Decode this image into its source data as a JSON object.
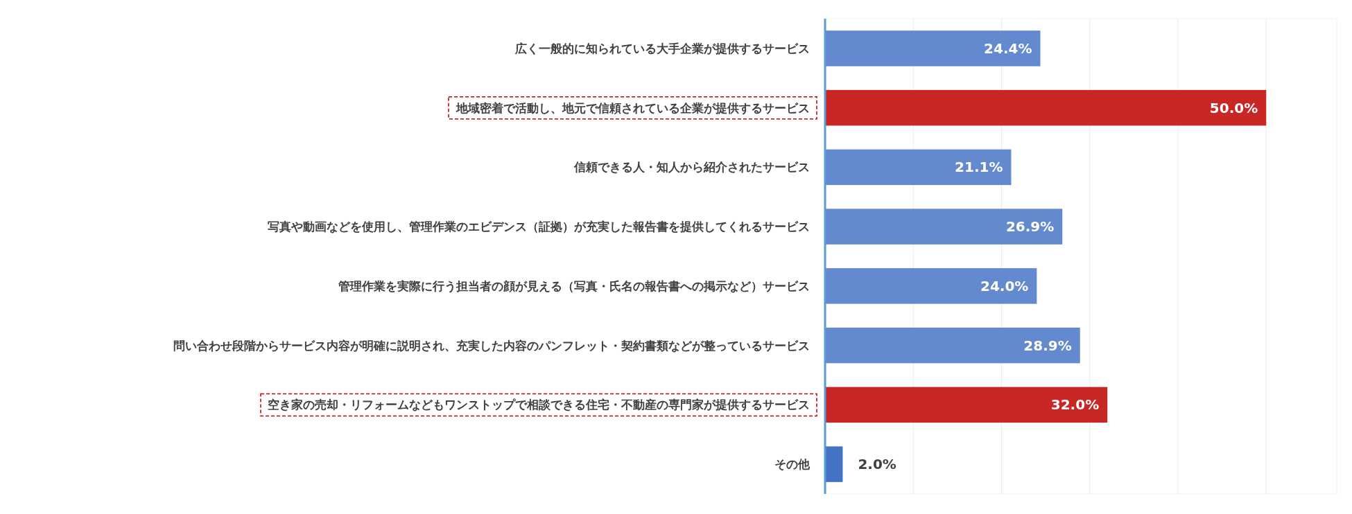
{
  "chart_data": {
    "type": "bar",
    "orientation": "horizontal",
    "categories": [
      "広く一般的に知られている大手企業が提供するサービス",
      "地域密着で活動し、地元で信頼されている企業が提供するサービス",
      "信頼できる人・知人から紹介されたサービス",
      "写真や動画などを使用し、管理作業のエビデンス（証拠）が充実した報告書を提供してくれるサービス",
      "管理作業を実際に行う担当者の顔が見える（写真・氏名の報告書への掲示など）サービス",
      "問い合わせ段階からサービス内容が明確に説明され、充実した内容のパンフレット・契約書類などが整っているサービス",
      "空き家の売却・リフォームなどもワンストップで相談できる住宅・不動産の専門家が提供するサービス",
      "その他"
    ],
    "values": [
      24.4,
      50.0,
      21.1,
      26.9,
      24.0,
      28.9,
      32.0,
      2.0
    ],
    "value_labels": [
      "24.4%",
      "50.0%",
      "21.1%",
      "26.9%",
      "24.0%",
      "28.9%",
      "32.0%",
      "2.0%"
    ],
    "colors": [
      "#6389cf",
      "#c92626",
      "#6389cf",
      "#6389cf",
      "#6389cf",
      "#6389cf",
      "#c92626",
      "#4472c4"
    ],
    "xlim": [
      0,
      58
    ],
    "xticks": [
      {
        "value": 0,
        "label": null
      },
      {
        "value": 10,
        "label": null
      },
      {
        "value": 20,
        "label": null
      },
      {
        "value": 30,
        "label": null
      },
      {
        "value": 40,
        "label": null
      },
      {
        "value": 50,
        "label": null
      }
    ],
    "grid": "x"
  }
}
